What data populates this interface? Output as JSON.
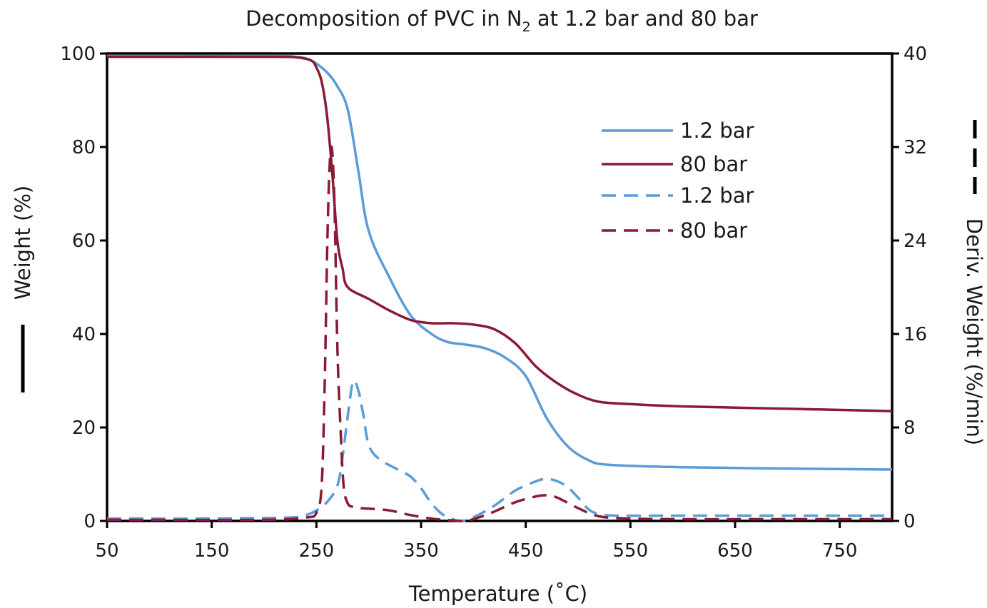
{
  "chart_data": {
    "type": "line",
    "title": "Decomposition of PVC in N",
    "title_subscript": "2",
    "title_suffix": " at 1.2 bar and 80 bar",
    "xlabel": "Temperature (˚C)",
    "ylabel_left": "Weight (%)",
    "ylabel_right": "Deriv. Weight (%/min)",
    "xlim": [
      50,
      800
    ],
    "ylim_left": [
      0,
      100
    ],
    "ylim_right": [
      0,
      40
    ],
    "x_ticks": [
      "50",
      "150",
      "250",
      "350",
      "450",
      "550",
      "650",
      "750"
    ],
    "y_left_ticks": [
      "0",
      "20",
      "40",
      "60",
      "80",
      "100"
    ],
    "y_right_ticks": [
      "0",
      "8",
      "16",
      "24",
      "32",
      "40"
    ],
    "grid": false,
    "legend_position": "top-right",
    "series": [
      {
        "name": "1.2 bar",
        "axis": "left",
        "style": "solid",
        "color": "#5b9bd8",
        "x": [
          50,
          200,
          230,
          245,
          260,
          270,
          280,
          290,
          300,
          320,
          340,
          360,
          375,
          390,
          410,
          430,
          450,
          470,
          490,
          510,
          530,
          600,
          700,
          800
        ],
        "y": [
          99.5,
          99.5,
          99.3,
          98.5,
          96,
          93,
          88,
          75,
          62,
          52,
          44,
          40,
          38.3,
          37.8,
          37,
          35,
          31,
          22,
          16,
          13,
          12,
          11.5,
          11.2,
          11
        ]
      },
      {
        "name": "80 bar",
        "axis": "left",
        "style": "solid",
        "color": "#8a1a36",
        "x": [
          50,
          200,
          230,
          245,
          250,
          255,
          260,
          265,
          270,
          275,
          280,
          300,
          320,
          340,
          360,
          380,
          400,
          420,
          440,
          460,
          480,
          500,
          520,
          550,
          600,
          700,
          800
        ],
        "y": [
          99.3,
          99.3,
          99.2,
          98.5,
          97,
          94,
          87,
          75,
          60,
          54,
          50,
          47.5,
          45,
          43,
          42.3,
          42.3,
          42,
          41,
          38,
          33,
          29.5,
          27,
          25.5,
          25,
          24.5,
          24,
          23.5
        ]
      },
      {
        "name": "1.2 bar",
        "axis": "right",
        "style": "dashed",
        "color": "#5b9bd8",
        "x": [
          50,
          150,
          225,
          240,
          250,
          260,
          270,
          275,
          280,
          285,
          290,
          295,
          300,
          310,
          330,
          340,
          350,
          360,
          370,
          380,
          390,
          400,
          420,
          440,
          460,
          470,
          480,
          490,
          500,
          510,
          520,
          540,
          600,
          700,
          800
        ],
        "y": [
          0.2,
          0.2,
          0.3,
          0.5,
          0.9,
          1.6,
          3,
          5.5,
          9,
          11.9,
          11.2,
          9,
          6.5,
          5.3,
          4.3,
          3.8,
          2.8,
          1.5,
          0.6,
          0.15,
          0,
          0.3,
          1.3,
          2.6,
          3.4,
          3.6,
          3.4,
          2.9,
          2,
          1,
          0.6,
          0.45,
          0.45,
          0.45,
          0.45
        ]
      },
      {
        "name": "80 bar",
        "axis": "right",
        "style": "dashed",
        "color": "#8a1a36",
        "x": [
          50,
          200,
          240,
          250,
          255,
          258,
          261,
          264,
          267,
          270,
          273,
          276,
          280,
          285,
          290,
          300,
          320,
          340,
          360,
          380,
          390,
          400,
          420,
          440,
          460,
          470,
          480,
          500,
          520,
          550,
          600,
          700,
          800
        ],
        "y": [
          0.1,
          0.1,
          0.3,
          0.7,
          3,
          12,
          26,
          32,
          28,
          15,
          8,
          3,
          1.5,
          1.2,
          1.1,
          1.05,
          0.9,
          0.5,
          0.2,
          0.05,
          0,
          0.15,
          0.8,
          1.6,
          2.1,
          2.2,
          2,
          1.1,
          0.4,
          0.2,
          0.15,
          0.15,
          0.15
        ]
      }
    ]
  }
}
